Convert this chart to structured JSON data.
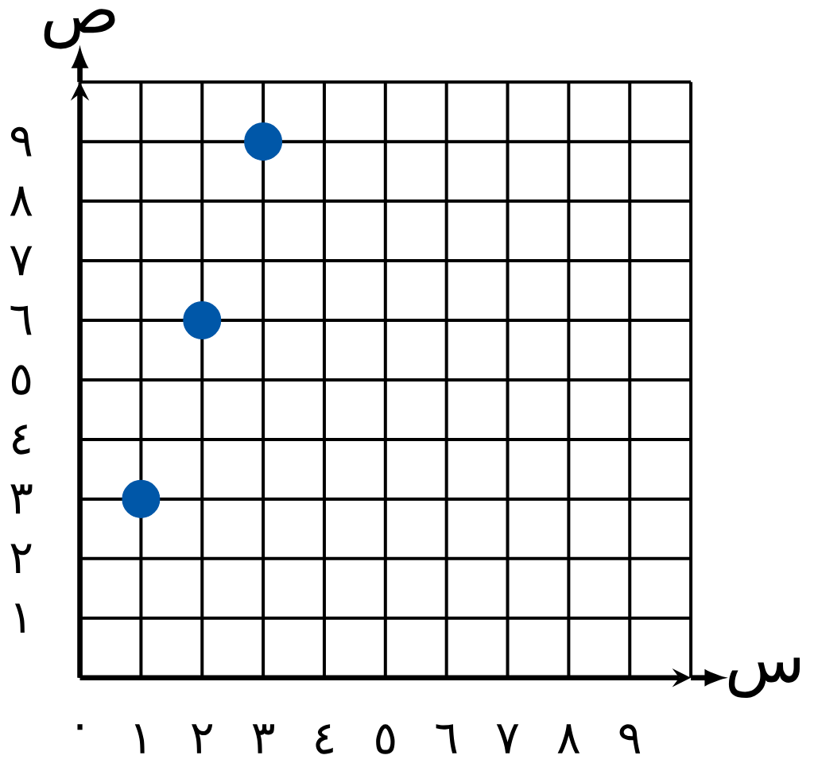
{
  "chart_data": {
    "type": "scatter",
    "xlabel": "س",
    "ylabel": "ص",
    "x": [
      1,
      2,
      3
    ],
    "series": [
      {
        "color": "#0057a8",
        "values": [
          3,
          6,
          9
        ]
      }
    ],
    "xlim": [
      0,
      10
    ],
    "ylim": [
      0,
      10
    ],
    "xticks": [
      {
        "value": 0,
        "label": "٠"
      },
      {
        "value": 1,
        "label": "١"
      },
      {
        "value": 2,
        "label": "٢"
      },
      {
        "value": 3,
        "label": "٣"
      },
      {
        "value": 4,
        "label": "٤"
      },
      {
        "value": 5,
        "label": "٥"
      },
      {
        "value": 6,
        "label": "٦"
      },
      {
        "value": 7,
        "label": "٧"
      },
      {
        "value": 8,
        "label": "٨"
      },
      {
        "value": 9,
        "label": "٩"
      },
      {
        "value": 10,
        "label": null
      }
    ],
    "yticks": [
      {
        "value": 1,
        "label": "١"
      },
      {
        "value": 2,
        "label": "٢"
      },
      {
        "value": 3,
        "label": "٣"
      },
      {
        "value": 4,
        "label": "٤"
      },
      {
        "value": 5,
        "label": "٥"
      },
      {
        "value": 6,
        "label": "٦"
      },
      {
        "value": 7,
        "label": "٧"
      },
      {
        "value": 8,
        "label": "٨"
      },
      {
        "value": 9,
        "label": "٩"
      },
      {
        "value": 10,
        "label": null
      }
    ],
    "grid": true,
    "marker": "circle"
  }
}
